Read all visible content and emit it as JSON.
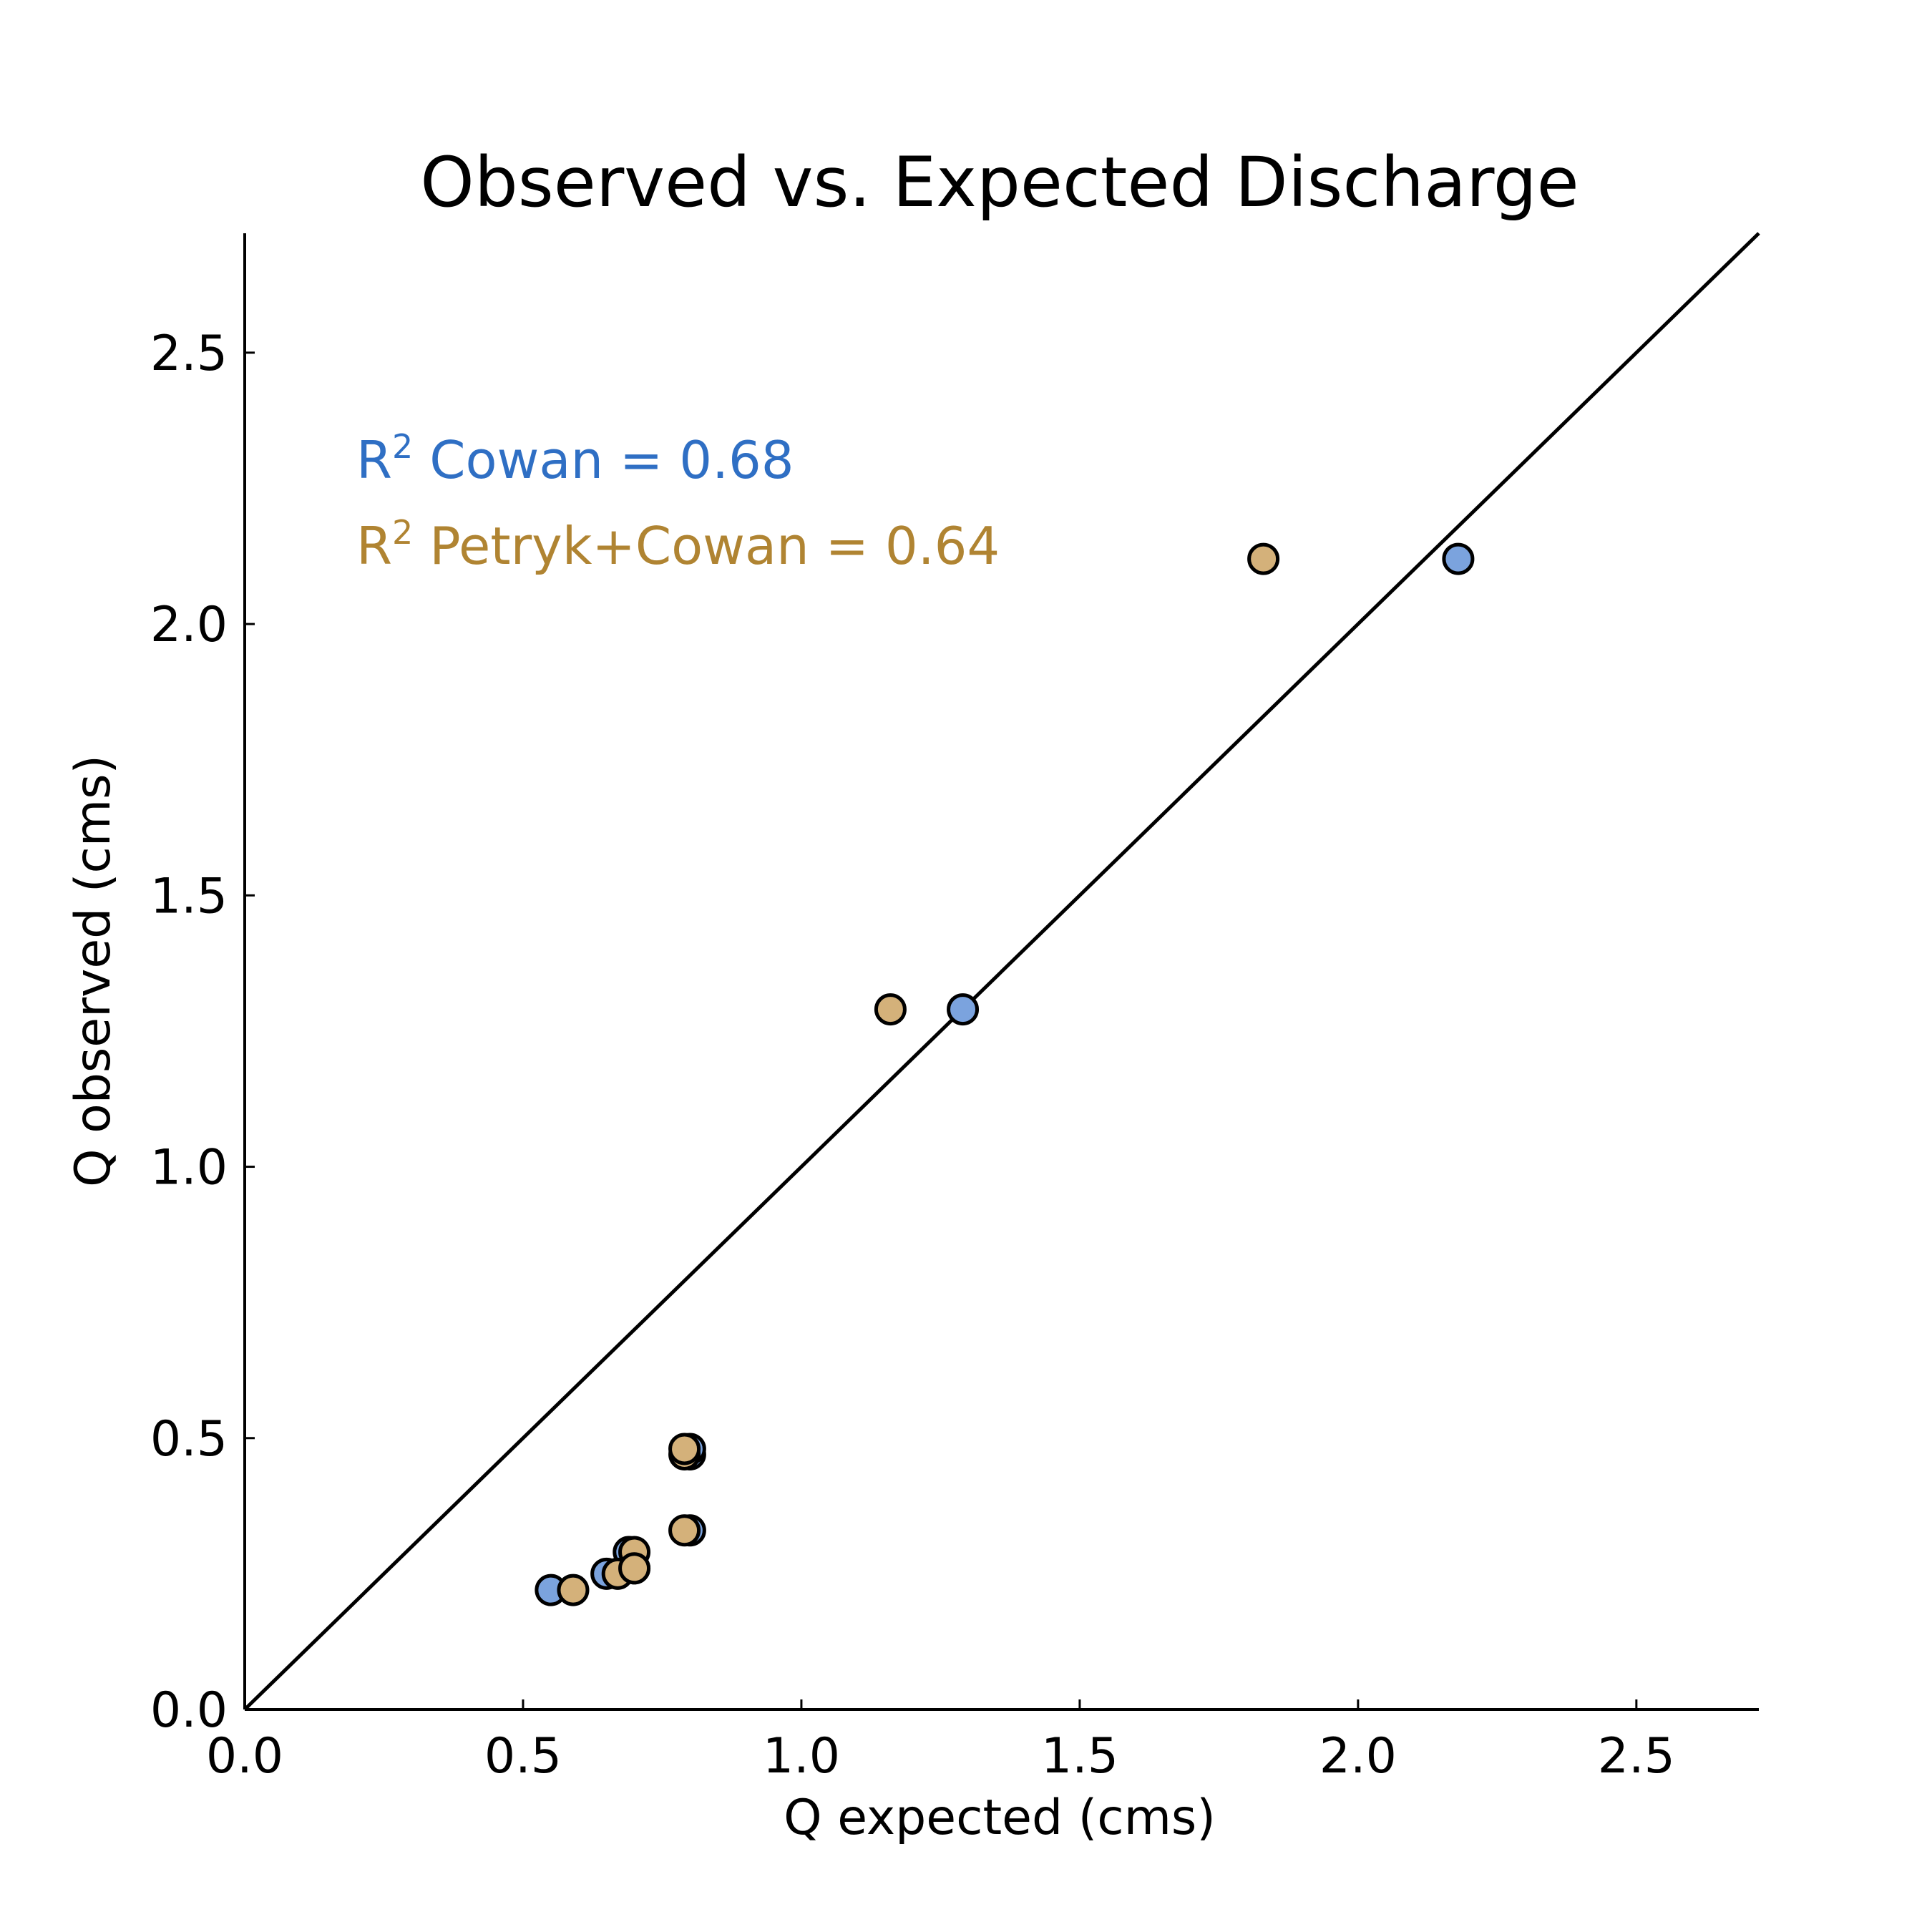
{
  "chart_data": {
    "type": "scatter",
    "title": "Observed vs. Expected Discharge",
    "xlabel": "Q expected (cms)",
    "ylabel": "Q observed (cms)",
    "xlim": [
      0,
      2.72
    ],
    "ylim": [
      0,
      2.72
    ],
    "xticks": [
      "0.0",
      "0.5",
      "1.0",
      "1.5",
      "2.0",
      "2.5"
    ],
    "yticks": [
      "0.0",
      "0.5",
      "1.0",
      "1.5",
      "2.0",
      "2.5"
    ],
    "grid": false,
    "reference_line": {
      "type": "1:1",
      "from": [
        0,
        0
      ],
      "to": [
        2.72,
        2.72
      ]
    },
    "series": [
      {
        "name": "Cowan",
        "color": "#7ba3de",
        "annotation": {
          "label": "R",
          "sup": "2",
          "text": " Cowan = 0.68",
          "color": "#2f6fc4"
        },
        "points": [
          [
            0.55,
            0.22
          ],
          [
            0.65,
            0.25
          ],
          [
            0.69,
            0.29
          ],
          [
            0.7,
            0.26
          ],
          [
            0.8,
            0.33
          ],
          [
            0.8,
            0.47
          ],
          [
            0.8,
            0.48
          ],
          [
            1.29,
            1.29
          ],
          [
            2.18,
            2.12
          ]
        ]
      },
      {
        "name": "Petryk+Cowan",
        "color": "#d4b17a",
        "annotation": {
          "label": "R",
          "sup": "2",
          "text": " Petryk+Cowan = 0.64",
          "color": "#b08432"
        },
        "points": [
          [
            0.59,
            0.22
          ],
          [
            0.67,
            0.25
          ],
          [
            0.7,
            0.29
          ],
          [
            0.7,
            0.26
          ],
          [
            0.79,
            0.33
          ],
          [
            0.79,
            0.47
          ],
          [
            0.79,
            0.48
          ],
          [
            1.16,
            1.29
          ],
          [
            1.83,
            2.12
          ]
        ]
      }
    ]
  }
}
